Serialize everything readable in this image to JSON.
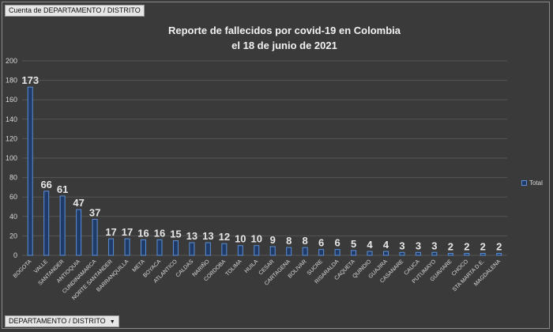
{
  "top_field_button": "Cuenta de DEPARTAMENTO / DISTRITO",
  "bottom_field_button": "DEPARTAMENTO / DISTRITO",
  "colors": {
    "bar_fill": "#1f3a66",
    "bar_stroke": "#5b8fd6",
    "grid": "#555555",
    "text": "#d9d9d9"
  },
  "chart_data": {
    "type": "bar",
    "title": "Reporte de fallecidos por covid-19 en Colombia",
    "subtitle": "el 18 de junio de 2021",
    "categories": [
      "BOGOTA",
      "VALLE",
      "SANTANDER",
      "ANTIOQUIA",
      "CUNDINAMARCA",
      "NORTE SANTANDER",
      "BARRANQUILLA",
      "META",
      "BOYACA",
      "ATLANTICO",
      "CALDAS",
      "NARIÑO",
      "CORDOBA",
      "TOLIMA",
      "HUILA",
      "CESAR",
      "CARTAGENA",
      "BOLIVAR",
      "SUCRE",
      "RISARALDA",
      "CAQUETA",
      "QUINDIO",
      "GUAJIRA",
      "CASANARE",
      "CAUCA",
      "PUTUMAYO",
      "GUAVIARE",
      "CHOCO",
      "STA MARTA D.E.",
      "MAGDALENA"
    ],
    "series": [
      {
        "name": "Total",
        "values": [
          173,
          66,
          61,
          47,
          37,
          17,
          17,
          16,
          16,
          15,
          13,
          13,
          12,
          10,
          10,
          9,
          8,
          8,
          6,
          6,
          5,
          4,
          4,
          3,
          3,
          3,
          2,
          2,
          2,
          2
        ]
      }
    ],
    "ylim": [
      0,
      200
    ],
    "yticks": [
      0,
      20,
      40,
      60,
      80,
      100,
      120,
      140,
      160,
      180,
      200
    ],
    "grid": true,
    "legend": "right"
  }
}
